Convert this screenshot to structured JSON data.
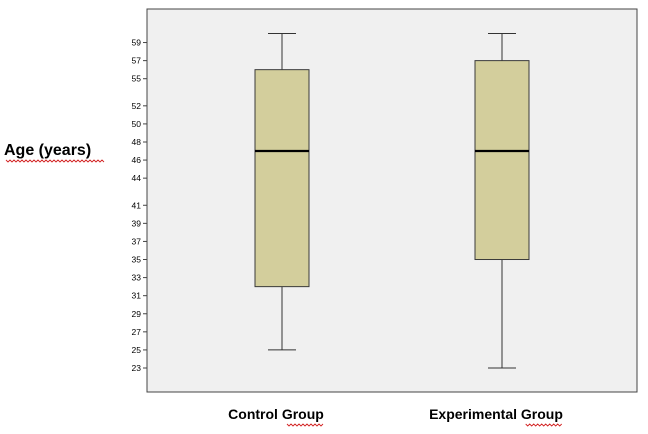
{
  "chart_data": {
    "type": "boxplot",
    "title": "",
    "xlabel": "",
    "ylabel": "Age (years)",
    "ylim": [
      22,
      61
    ],
    "y_ticks": [
      59,
      57,
      55,
      52,
      50,
      48,
      46,
      44,
      41,
      39,
      37,
      35,
      33,
      31,
      29,
      27,
      25,
      23
    ],
    "categories": [
      "Control Group",
      "Experimental Group"
    ],
    "series": [
      {
        "name": "Control Group",
        "min": 25,
        "q1": 32,
        "median": 47,
        "q3": 56,
        "max": 60
      },
      {
        "name": "Experimental Group",
        "min": 23,
        "q1": 35,
        "median": 47,
        "q3": 57,
        "max": 60
      }
    ],
    "colors": {
      "plot_background": "#f0f0f0",
      "box_fill": "#d3ce9c",
      "box_stroke": "#3a3a3a",
      "median_stroke": "#000000",
      "whisker_stroke": "#333333",
      "frame_stroke": "#444444",
      "spellcheck_underline": "#d21f1f"
    }
  }
}
